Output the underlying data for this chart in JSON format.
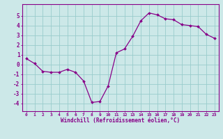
{
  "x": [
    0,
    1,
    2,
    3,
    4,
    5,
    6,
    7,
    8,
    9,
    10,
    11,
    12,
    13,
    14,
    15,
    16,
    17,
    18,
    19,
    20,
    21,
    22,
    23
  ],
  "y": [
    0.6,
    0.1,
    -0.7,
    -0.8,
    -0.8,
    -0.5,
    -0.8,
    -1.7,
    -3.9,
    -3.8,
    -2.2,
    1.2,
    1.6,
    2.9,
    4.5,
    5.3,
    5.1,
    4.7,
    4.6,
    4.1,
    4.0,
    3.9,
    3.1,
    2.7
  ],
  "xlabel": "Windchill (Refroidissement éolien,°C)",
  "xlim": [
    -0.5,
    23.5
  ],
  "ylim": [
    -4.8,
    6.2
  ],
  "yticks": [
    -4,
    -3,
    -2,
    -1,
    0,
    1,
    2,
    3,
    4,
    5
  ],
  "xticks": [
    0,
    1,
    2,
    3,
    4,
    5,
    6,
    7,
    8,
    9,
    10,
    11,
    12,
    13,
    14,
    15,
    16,
    17,
    18,
    19,
    20,
    21,
    22,
    23
  ],
  "line_color": "#880088",
  "marker_color": "#880088",
  "bg_color": "#cce8e8",
  "grid_color": "#99cccc",
  "axis_color": "#880088",
  "label_color": "#880088",
  "tick_color": "#880088"
}
